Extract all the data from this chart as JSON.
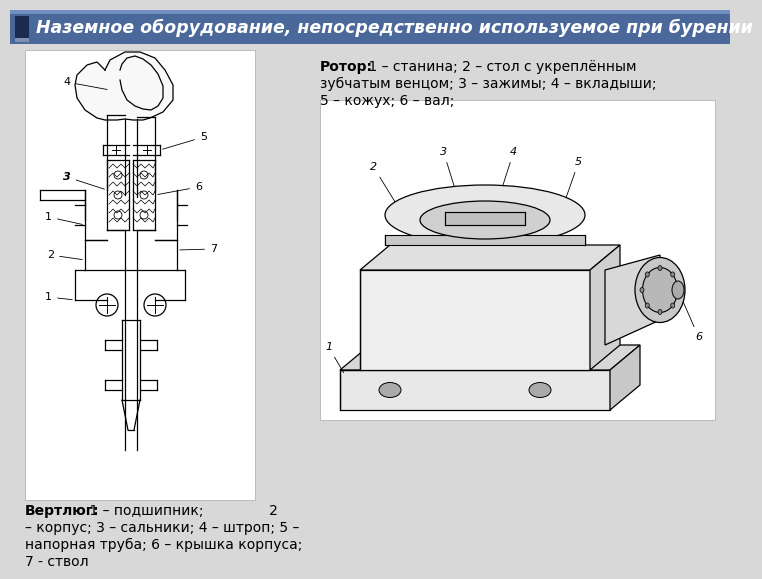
{
  "title": "Наземное оборудование, непосредственно используемое при бурении",
  "title_bg": "#4a6899",
  "title_fg": "#ffffff",
  "bg_color": "#d8d8d8",
  "draw_bg": "#f0f0f0",
  "right_bold": "Ротор:",
  "right_text": " 1 – станина; 2 – стол с укреплённым\nзубчатым венцом; 3 – зажимы; 4 – вкладыши;\n5 – кожух; 6 – вал;",
  "left_bold": "Вертлюг:",
  "left_text": " 1 – подшипник;               2\n– корпус; 3 – сальники; 4 – штроп; 5 –\nнапорная труба; 6 – крышка корпуса;\n7 - ствол"
}
